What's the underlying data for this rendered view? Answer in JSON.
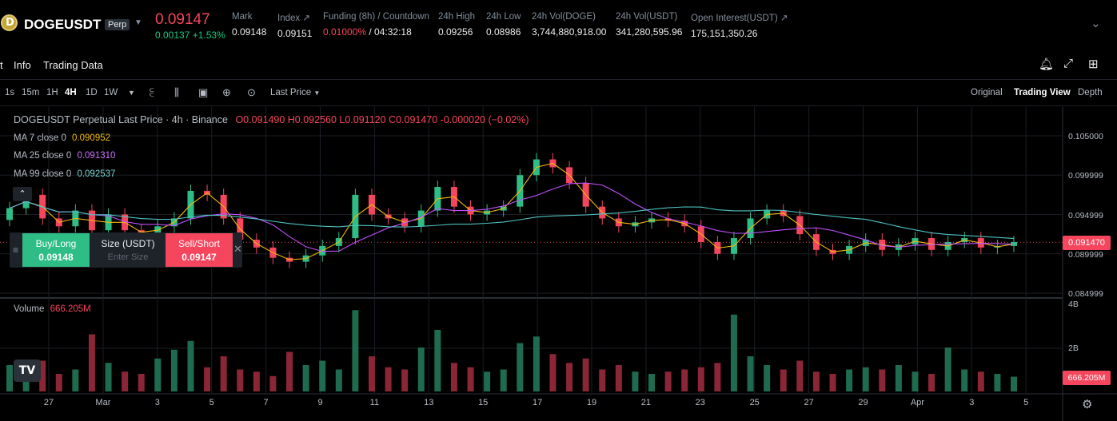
{
  "header": {
    "symbol": "DOGEUSDT",
    "badge": "Perp",
    "last_price": "0.09147",
    "change": "0.00137 +1.53%",
    "stats": [
      {
        "label": "Mark",
        "value": "0.09148"
      },
      {
        "label": "Index ↗",
        "value": "0.09151"
      },
      {
        "label": "Funding (8h) / Countdown",
        "value_red": "0.01000%",
        "value": " / 04:32:18"
      },
      {
        "label": "24h High",
        "value": "0.09256"
      },
      {
        "label": "24h Low",
        "value": "0.08986"
      },
      {
        "label": "24h Vol(DOGE)",
        "value": "3,744,880,918.00"
      },
      {
        "label": "24h Vol(USDT)",
        "value": "341,280,595.96"
      },
      {
        "label": "Open Interest(USDT) ↗",
        "value": "175,151,350.26"
      }
    ]
  },
  "tabs": {
    "partial": "t",
    "info": "Info",
    "trading_data": "Trading Data"
  },
  "toolbar": {
    "timeframes": [
      "1s",
      "15m",
      "1H",
      "4H",
      "1D",
      "1W"
    ],
    "active_timeframe": "4H",
    "price_type": "Last Price",
    "views": [
      "Original",
      "Trading View",
      "Depth"
    ],
    "active_view": "Trading View"
  },
  "legend": {
    "title": "DOGEUSDT Perpetual Last Price · 4h · Binance",
    "ohlc": "O0.091490 H0.092560 L0.091120 C0.091470 -0.000020 (−0.02%)",
    "ma7_label": "MA 7 close 0",
    "ma7_value": "0.090952",
    "ma25_label": "MA 25 close 0",
    "ma25_value": "0.091310",
    "ma99_label": "MA 99 close 0",
    "ma99_value": "0.092537",
    "volume_label": "Volume",
    "volume_value": "666.205M"
  },
  "trade_panel": {
    "buy_label": "Buy/Long",
    "buy_price": "0.09148",
    "size_label": "Size (USDT)",
    "size_placeholder": "Enter Size",
    "sell_label": "Sell/Short",
    "sell_price": "0.09147"
  },
  "axis": {
    "price_ticks": [
      "0.105000",
      "0.099999",
      "0.094999",
      "0.089999",
      "0.084999"
    ],
    "current_price_tag": "0.091470",
    "volume_ticks": [
      "4B",
      "2B"
    ],
    "volume_tag": "666.205M",
    "dates": [
      "27",
      "Mar",
      "3",
      "5",
      "7",
      "9",
      "11",
      "13",
      "15",
      "17",
      "19",
      "21",
      "23",
      "25",
      "27",
      "29",
      "Apr",
      "3",
      "5"
    ]
  },
  "colors": {
    "up": "#2ebd85",
    "down": "#f6465d",
    "ma7": "#f0b90b",
    "ma25": "#c050ff",
    "ma99": "#4fc3c3"
  },
  "chart_data": {
    "type": "candlestick",
    "title": "DOGEUSDT Perpetual Last Price · 4h · Binance",
    "x": [
      "27",
      "Mar",
      "3",
      "5",
      "7",
      "9",
      "11",
      "13",
      "15",
      "17",
      "19",
      "21",
      "23",
      "25",
      "27",
      "29",
      "Apr",
      "3",
      "5"
    ],
    "ylim": [
      0.0825,
      0.1065
    ],
    "close_series": [
      0.0958,
      0.0975,
      0.0945,
      0.0935,
      0.0955,
      0.093,
      0.095,
      0.093,
      0.0925,
      0.0935,
      0.0945,
      0.098,
      0.0975,
      0.0945,
      0.0918,
      0.0908,
      0.0895,
      0.089,
      0.0898,
      0.091,
      0.092,
      0.0975,
      0.095,
      0.0945,
      0.0935,
      0.0955,
      0.0985,
      0.096,
      0.095,
      0.0955,
      0.096,
      0.1,
      0.102,
      0.101,
      0.099,
      0.096,
      0.0945,
      0.0935,
      0.094,
      0.0945,
      0.0942,
      0.0935,
      0.0915,
      0.09,
      0.092,
      0.0945,
      0.0955,
      0.0948,
      0.0925,
      0.0905,
      0.09,
      0.091,
      0.0918,
      0.0905,
      0.0912,
      0.092,
      0.0905,
      0.0915,
      0.092,
      0.0908,
      0.091,
      0.0915
    ],
    "volume_unit": "DOGE",
    "volume_max_tick": "4B",
    "volume_last": "666.205M",
    "volume_series": [
      1.2,
      0.9,
      1.4,
      0.8,
      1.0,
      2.6,
      1.3,
      0.9,
      0.8,
      1.5,
      1.9,
      2.3,
      1.1,
      1.6,
      1.0,
      0.9,
      0.7,
      1.8,
      1.2,
      1.4,
      1.0,
      3.7,
      1.6,
      1.1,
      1.0,
      2.0,
      2.8,
      1.3,
      1.1,
      0.9,
      1.0,
      2.2,
      2.5,
      1.7,
      1.3,
      1.5,
      1.0,
      1.2,
      0.9,
      0.8,
      0.9,
      1.0,
      1.1,
      1.3,
      3.5,
      1.6,
      1.2,
      1.0,
      1.4,
      0.9,
      0.8,
      1.0,
      1.1,
      1.0,
      1.2,
      0.9,
      0.8,
      2.0,
      1.0,
      0.9,
      0.8,
      0.67
    ]
  }
}
